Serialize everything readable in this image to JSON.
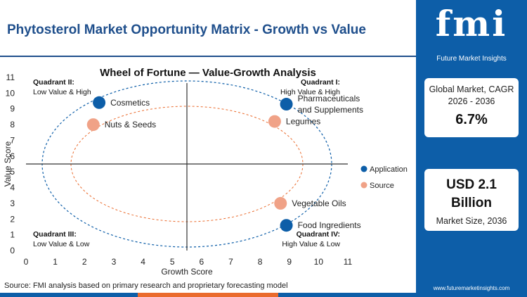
{
  "header": {
    "title": "Phytosterol Market Opportunity Matrix - Growth vs Value"
  },
  "brand": {
    "logo": "fmi",
    "tagline": "Future Market Insights",
    "website": "www.futuremarketinsights.com"
  },
  "stats": {
    "cagr_label": "Global Market, CAGR 2026 - 2036",
    "cagr_value": "6.7%",
    "size_value": "USD 2.1 Billion",
    "size_label": "Market Size, 2036"
  },
  "footer": {
    "source": "Source: FMI analysis based on primary research and proprietary forecasting model"
  },
  "colors": {
    "brand_blue": "#0d5ea8",
    "application": "#0d5ea8",
    "source": "#f0a287",
    "accent_orange": "#ea6b2d"
  },
  "chart_data": {
    "type": "scatter",
    "title": "Wheel of Fortune — Value-Growth Analysis",
    "xlabel": "Growth Score",
    "ylabel": "Value Score",
    "xlim": [
      0,
      11
    ],
    "ylim": [
      0,
      11
    ],
    "xticks": [
      "0",
      "1",
      "2",
      "3",
      "4",
      "5",
      "6",
      "7",
      "8",
      "9",
      "10",
      "11"
    ],
    "yticks": [
      "0",
      "1",
      "2",
      "3",
      "4",
      "5",
      "6",
      "7",
      "8",
      "9",
      "10",
      "11"
    ],
    "divider_x": 5.5,
    "divider_y": 5.5,
    "grid": false,
    "legend_position": "right",
    "quadrants": [
      {
        "title": "Quadrant II:",
        "desc": "Low Value & High"
      },
      {
        "title": "Quadrant I:",
        "desc": "High Value & High"
      },
      {
        "title": "Quadrant III:",
        "desc": "Low Value & Low"
      },
      {
        "title": "Quadrant IV:",
        "desc": "High Value & Low"
      }
    ],
    "series": [
      {
        "name": "Application",
        "color": "#0d5ea8",
        "points": [
          {
            "label": "Cosmetics",
            "x": 2.5,
            "y": 9.4
          },
          {
            "label": "Pharmaceuticals and Supplements",
            "x": 8.9,
            "y": 9.3
          },
          {
            "label": "Food Ingredients",
            "x": 8.9,
            "y": 1.6
          }
        ]
      },
      {
        "name": "Source",
        "color": "#f0a287",
        "points": [
          {
            "label": "Nuts & Seeds",
            "x": 2.3,
            "y": 8.0
          },
          {
            "label": "Legumes",
            "x": 8.5,
            "y": 8.2
          },
          {
            "label": "Vegetable Oils",
            "x": 8.7,
            "y": 3.0
          }
        ]
      }
    ]
  }
}
